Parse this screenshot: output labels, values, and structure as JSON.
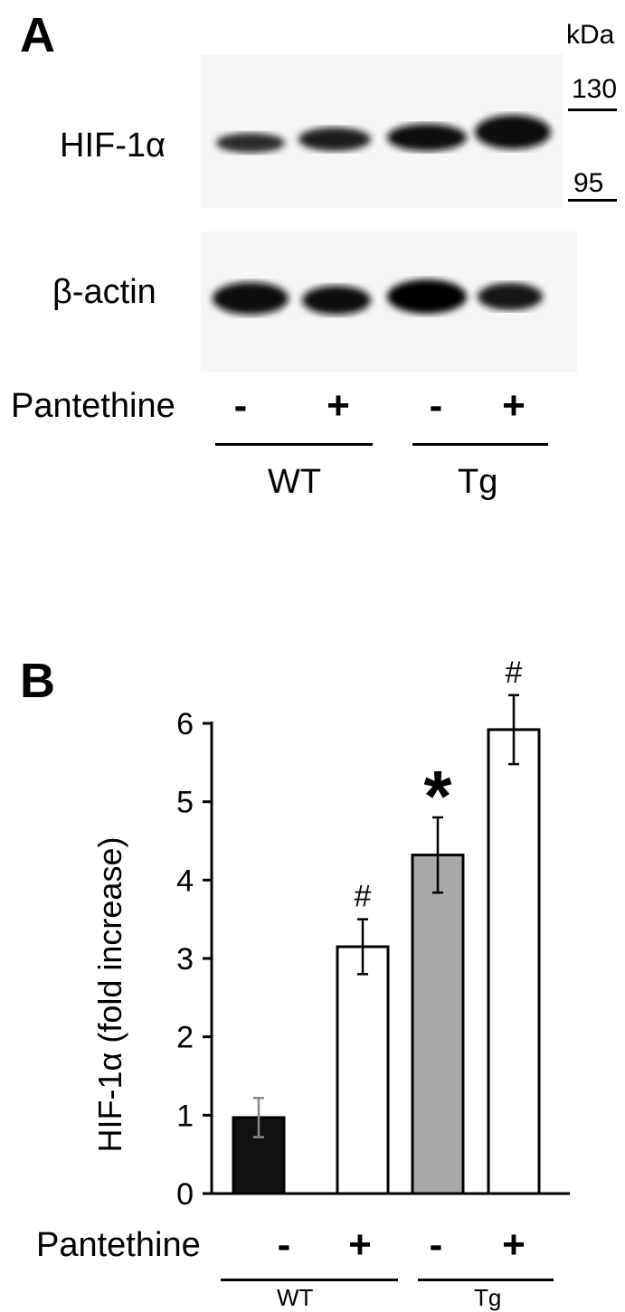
{
  "panel_a": {
    "label": "A",
    "unit": "kDa",
    "markers": [
      "130",
      "95"
    ],
    "rows": [
      "HIF-1α",
      "β-actin"
    ],
    "treatment_label": "Pantethine",
    "signs": [
      "-",
      "+",
      "-",
      "+"
    ],
    "groups": [
      "WT",
      "Tg"
    ]
  },
  "panel_b": {
    "label": "B",
    "treatment_label": "Pantethine",
    "signs": [
      "-",
      "+",
      "-",
      "+"
    ],
    "groups": [
      "WT",
      "Tg"
    ]
  },
  "chart_data": {
    "type": "bar",
    "categories": [
      "WT -",
      "WT +",
      "Tg -",
      "Tg +"
    ],
    "values": [
      0.97,
      3.15,
      4.32,
      5.92
    ],
    "errors": [
      0.25,
      0.35,
      0.48,
      0.44
    ],
    "annotations": [
      "",
      "#",
      "*",
      "#"
    ],
    "bar_colors": [
      "#111111",
      "#ffffff",
      "#a9a9a9",
      "#ffffff"
    ],
    "ylabel": "HIF-1α  (fold increase)",
    "yticks": [
      "0",
      "1",
      "2",
      "3",
      "4",
      "5",
      "6"
    ],
    "ylim": [
      0,
      6.3
    ],
    "grid": false
  }
}
